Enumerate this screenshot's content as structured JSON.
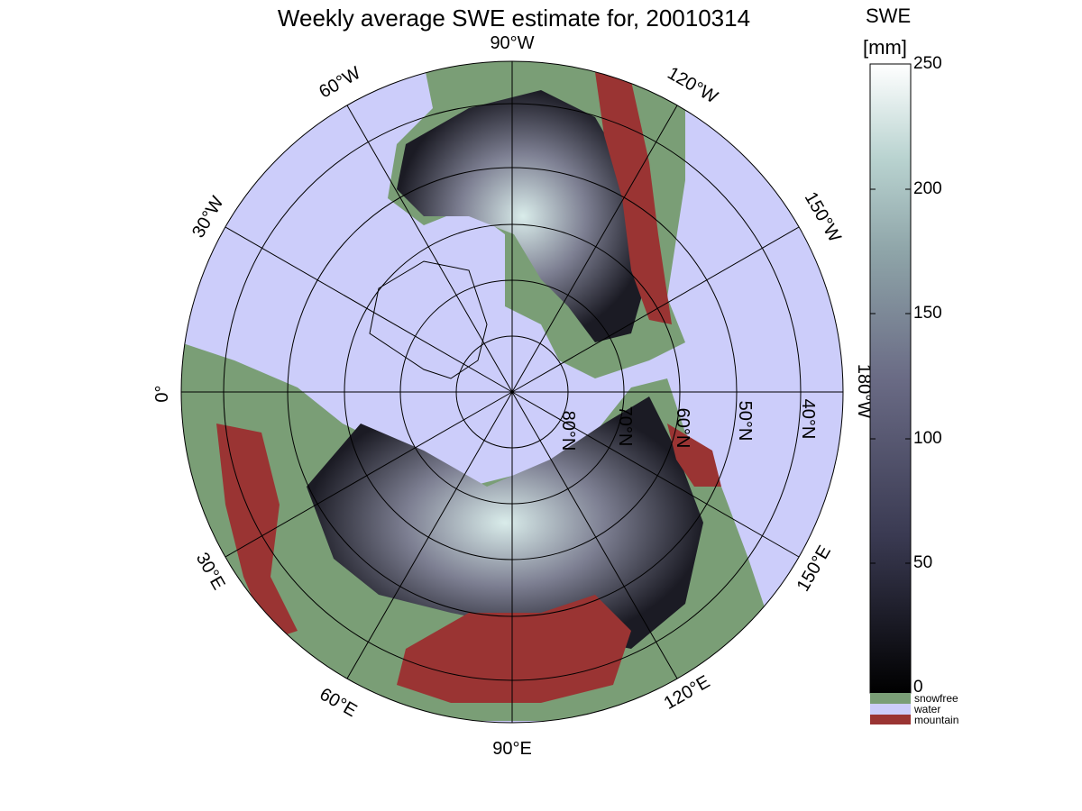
{
  "title": "Weekly average SWE estimate for, 20010314",
  "colorbar": {
    "label_line1": "SWE",
    "label_line2": "[mm]",
    "ticks": [
      "250",
      "200",
      "150",
      "100",
      "50",
      "0"
    ],
    "min": 0,
    "max": 250
  },
  "legend": [
    {
      "label": "snowfree",
      "color": "#7a9e76"
    },
    {
      "label": "water",
      "color": "#cccdfa"
    },
    {
      "label": "mountain",
      "color": "#9a3433"
    }
  ],
  "meridian_labels": {
    "lon_90W": "90°W",
    "lon_60W": "60°W",
    "lon_30W": "30°W",
    "lon_0": "0°",
    "lon_30E": "30°E",
    "lon_60E": "60°E",
    "lon_90E": "90°E",
    "lon_120E": "120°E",
    "lon_150E": "150°E",
    "lon_180W": "180°W",
    "lon_150W": "150°W",
    "lon_120W": "120°W"
  },
  "parallel_labels": {
    "lat_80N": "80°N",
    "lat_70N": "70°N",
    "lat_60N": "60°N",
    "lat_50N": "50°N",
    "lat_40N": "40°N"
  },
  "colors": {
    "water": "#cccdfa",
    "snowfree": "#7a9e76",
    "mountain": "#9a3433",
    "swe_low": "#000000",
    "swe_high": "#ffffff"
  }
}
